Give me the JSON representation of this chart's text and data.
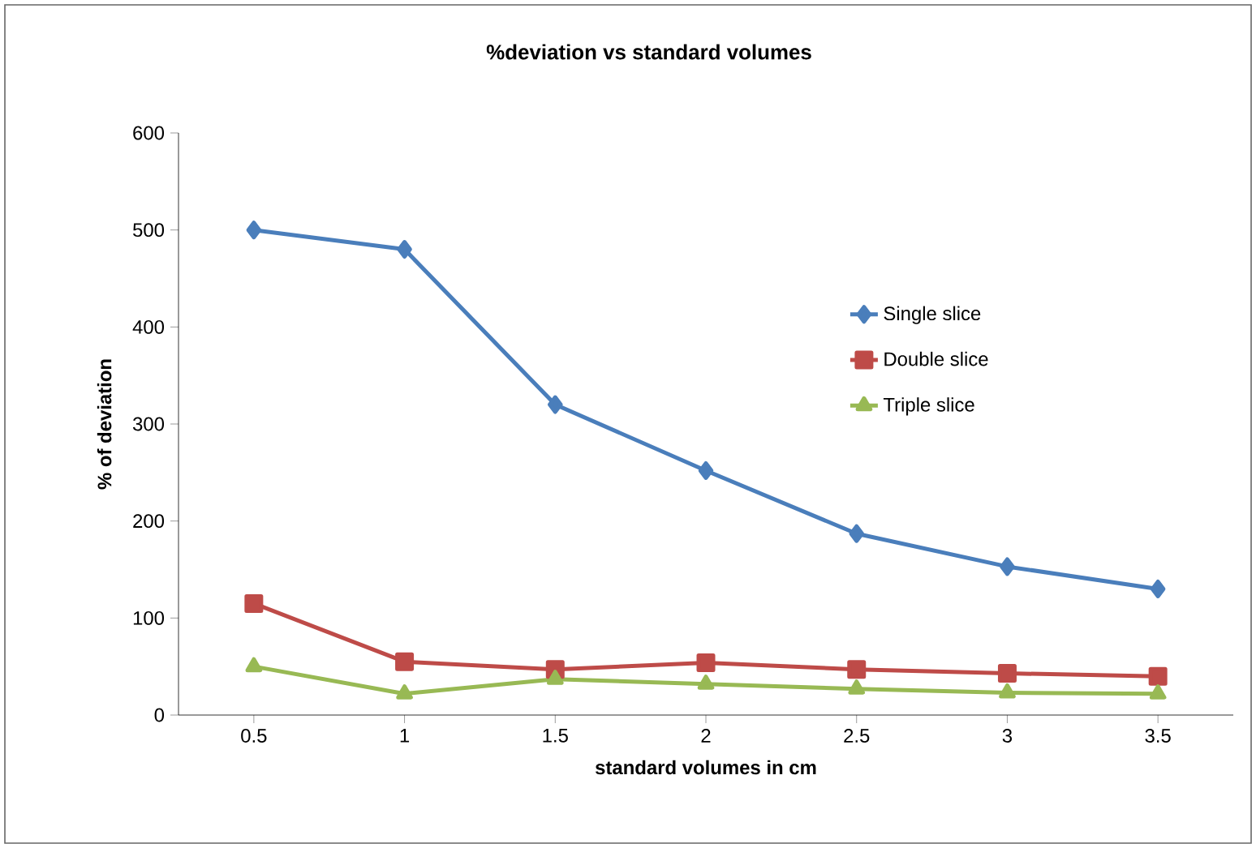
{
  "chart_data": {
    "type": "line",
    "title": "%deviation vs standard volumes",
    "xlabel": "standard volumes in cm",
    "ylabel": "% of deviation",
    "categories": [
      "0.5",
      "1",
      "1.5",
      "2",
      "2.5",
      "3",
      "3.5"
    ],
    "series": [
      {
        "name": "Single slice",
        "color": "#4a7ebb",
        "marker": "diamond",
        "values": [
          500,
          480,
          320,
          252,
          187,
          153,
          130
        ]
      },
      {
        "name": "Double slice",
        "color": "#be4b48",
        "marker": "square",
        "values": [
          115,
          55,
          47,
          54,
          47,
          43,
          40
        ]
      },
      {
        "name": "Triple slice",
        "color": "#98b954",
        "marker": "triangle",
        "values": [
          50,
          22,
          37,
          32,
          27,
          23,
          22
        ]
      }
    ],
    "ylim": [
      0,
      600
    ],
    "yticks": [
      0,
      100,
      200,
      300,
      400,
      500,
      600
    ],
    "grid": false,
    "legend": "right",
    "line_style": "solid"
  }
}
